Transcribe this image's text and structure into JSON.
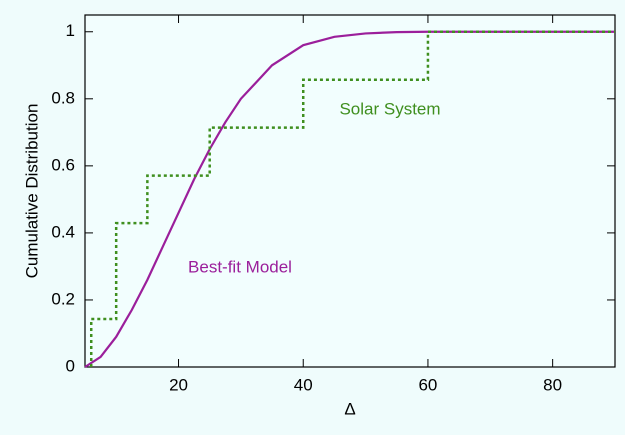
{
  "chart_data": {
    "type": "line",
    "xlabel": "Δ",
    "ylabel": "Cumulative Distribution",
    "xlim": [
      5,
      90
    ],
    "ylim": [
      0,
      1.05
    ],
    "xticks": [
      20,
      40,
      60,
      80
    ],
    "yticks": [
      0,
      0.2,
      0.4,
      0.6,
      0.8,
      1
    ],
    "series": [
      {
        "name": "Best-fit Model",
        "color": "#9b1f9b",
        "step": false,
        "x": [
          5,
          7.5,
          10,
          12.5,
          15,
          17.5,
          20,
          22.5,
          25,
          27.5,
          30,
          35,
          40,
          45,
          50,
          55,
          60,
          70,
          80,
          90
        ],
        "values": [
          0,
          0.03,
          0.09,
          0.17,
          0.26,
          0.36,
          0.46,
          0.56,
          0.65,
          0.73,
          0.8,
          0.9,
          0.96,
          0.985,
          0.995,
          0.999,
          1,
          1,
          1,
          1
        ]
      },
      {
        "name": "Solar System",
        "color": "#3f8f1f",
        "step": true,
        "x": [
          6,
          6,
          10,
          15,
          25,
          40,
          60,
          90
        ],
        "values": [
          0,
          0.143,
          0.429,
          0.571,
          0.714,
          0.857,
          1,
          1
        ]
      }
    ]
  }
}
